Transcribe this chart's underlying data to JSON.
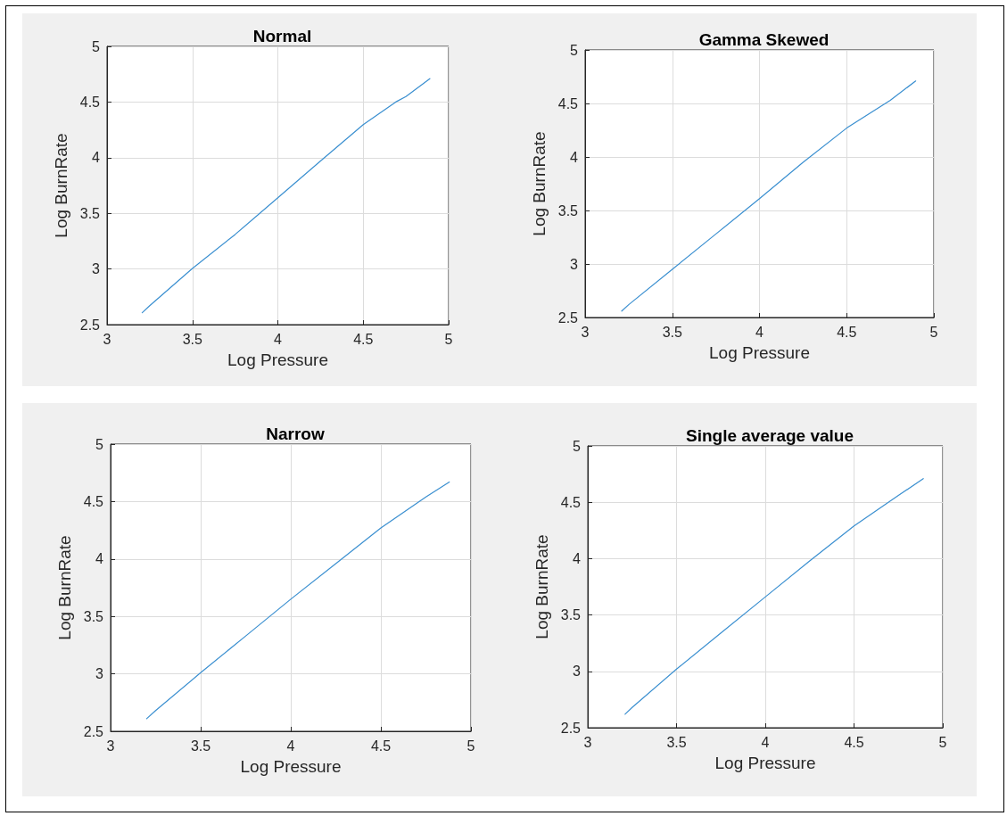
{
  "chart_data": [
    {
      "type": "line",
      "title": "Normal",
      "xlabel": "Log Pressure",
      "ylabel": "Log BurnRate",
      "x": [
        3.206,
        3.25,
        3.5,
        3.75,
        4.0,
        4.25,
        4.5,
        4.69,
        4.75,
        4.89
      ],
      "series": [
        {
          "color": "#3a8fd0",
          "values": [
            2.607,
            2.67,
            3.005,
            3.31,
            3.64,
            3.97,
            4.297,
            4.5,
            4.55,
            4.71
          ]
        }
      ],
      "xlim": [
        3,
        5
      ],
      "xticks": [
        3,
        3.5,
        4,
        4.5,
        5
      ],
      "ylim": [
        2.5,
        5
      ],
      "yticks": [
        2.5,
        3,
        3.5,
        4,
        4.5,
        5
      ],
      "grid": true,
      "marker": "none",
      "line_style": "solid"
    },
    {
      "type": "line",
      "title": "Gamma Skewed",
      "xlabel": "Log Pressure",
      "ylabel": "Log BurnRate",
      "x": [
        3.21,
        3.25,
        3.5,
        3.75,
        4.0,
        4.25,
        4.5,
        4.75,
        4.896
      ],
      "series": [
        {
          "color": "#3a8fd0",
          "values": [
            2.56,
            2.62,
            2.95,
            3.28,
            3.61,
            3.95,
            4.27,
            4.53,
            4.71
          ]
        }
      ],
      "xlim": [
        3,
        5
      ],
      "xticks": [
        3,
        3.5,
        4,
        4.5,
        5
      ],
      "ylim": [
        2.5,
        5
      ],
      "yticks": [
        2.5,
        3,
        3.5,
        4,
        4.5,
        5
      ],
      "grid": true,
      "marker": "none",
      "line_style": "solid"
    },
    {
      "type": "line",
      "title": "Narrow",
      "xlabel": "Log Pressure",
      "ylabel": "Log BurnRate",
      "x": [
        3.2,
        3.25,
        3.5,
        3.75,
        4.0,
        4.25,
        4.5,
        4.75,
        4.88
      ],
      "series": [
        {
          "color": "#3a8fd0",
          "values": [
            2.61,
            2.68,
            3.01,
            3.33,
            3.65,
            3.96,
            4.27,
            4.54,
            4.67
          ]
        }
      ],
      "xlim": [
        3,
        5
      ],
      "xticks": [
        3,
        3.5,
        4,
        4.5,
        5
      ],
      "ylim": [
        2.5,
        5
      ],
      "yticks": [
        2.5,
        3,
        3.5,
        4,
        4.5,
        5
      ],
      "grid": true,
      "marker": "none",
      "line_style": "solid"
    },
    {
      "type": "line",
      "title": "Single average value",
      "xlabel": "Log Pressure",
      "ylabel": "Log BurnRate",
      "x": [
        3.21,
        3.25,
        3.5,
        3.75,
        4.0,
        4.25,
        4.5,
        4.75,
        4.89
      ],
      "series": [
        {
          "color": "#3a8fd0",
          "values": [
            2.62,
            2.68,
            3.02,
            3.34,
            3.66,
            3.98,
            4.29,
            4.56,
            4.71
          ]
        }
      ],
      "xlim": [
        3,
        5
      ],
      "xticks": [
        3,
        3.5,
        4,
        4.5,
        5
      ],
      "ylim": [
        2.5,
        5
      ],
      "yticks": [
        2.5,
        3,
        3.5,
        4,
        4.5,
        5
      ],
      "grid": true,
      "marker": "none",
      "line_style": "solid"
    }
  ]
}
